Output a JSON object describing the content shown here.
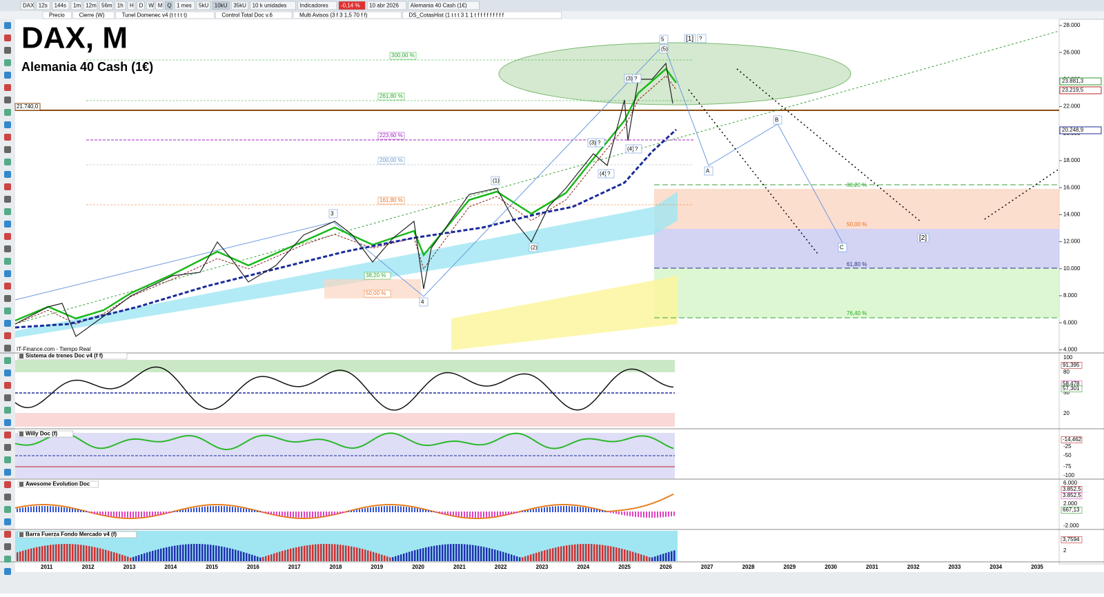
{
  "toolbar": {
    "symbol": "DAX",
    "buttons": [
      "12s",
      "144s",
      "1m",
      "12m",
      "56m",
      "1h",
      "H",
      "D",
      "W",
      "M",
      "Q"
    ],
    "period": "1 mes",
    "units": [
      "5kU",
      "10kU",
      "35kU"
    ],
    "unit_select": "10 k unidades",
    "indicators": "Indicadores",
    "change": "-0,14 %",
    "date": "10 abr 2026",
    "instrument": "Alemania 40 Cash (1€)"
  },
  "tabs": [
    "Precio",
    "Cierre (W)",
    "Tunel Domenec v4 (t t t t t)",
    "Control Total Doc v.6",
    "Multi Avisos (3 f 3 1,5 70 f f)",
    "DS_CotasHist (1 t t t 3 1 1 t f f f f f f f f f"
  ],
  "chart": {
    "title": "DAX, M",
    "subtitle": "Alemania 40 Cash (1€)",
    "source": "IT-Finance.com - Tiempo Real",
    "price_ticks": [
      "28.000",
      "26.000",
      "24.000",
      "22.000",
      "20.000",
      "18.000",
      "16.000",
      "14.000",
      "12.000",
      "10.000",
      "8.000",
      "6.000",
      "4.000"
    ],
    "price_tags": [
      "23.881,3",
      "23.219,5",
      "20.248,9"
    ],
    "level_tag": "21.740,0",
    "fib_left": [
      "300,00 %",
      "261,80 %",
      "223,60 %",
      "200,00 %",
      "161,80 %",
      "38,20 %",
      "50,00 %"
    ],
    "fib_right": [
      "38,20 %",
      "50,00 %",
      "61,80 %",
      "76,40 %"
    ],
    "waves": [
      "5",
      "(5)",
      "[1]",
      "?",
      "(3)",
      "?",
      "(3)",
      "?",
      "(4)",
      "?",
      "(4)",
      "?",
      "(1)",
      "(2)",
      "3",
      "4",
      "A",
      "B",
      "C",
      "[2]"
    ]
  },
  "years": [
    "2011",
    "2012",
    "2013",
    "2014",
    "2015",
    "2016",
    "2017",
    "2018",
    "2019",
    "2020",
    "2021",
    "2022",
    "2023",
    "2024",
    "2025",
    "2026",
    "2027",
    "2028",
    "2029",
    "2030",
    "2031",
    "2032",
    "2033",
    "2034",
    "2035"
  ],
  "panels": [
    {
      "title": "Sistema de trenes Doc v4 (f f)",
      "ticks": [
        "100",
        "80",
        "50",
        "20"
      ],
      "tags": [
        "91,395",
        "58,478",
        "57,301"
      ]
    },
    {
      "title": "Willy Doc (f)",
      "ticks": [
        "-25",
        "-50",
        "-75",
        "-100"
      ],
      "tags": [
        "-14,462"
      ]
    },
    {
      "title": "Awesome Evolution Doc",
      "ticks": [
        "6.000",
        "2.000",
        "-2.000"
      ],
      "tags": [
        "3.852,5",
        "3.852,5",
        "667,13"
      ]
    },
    {
      "title": "Barra Fuerza Fondo Mercado v4 (f)",
      "ticks": [
        "2"
      ],
      "tags": [
        "3,7594"
      ]
    }
  ]
}
